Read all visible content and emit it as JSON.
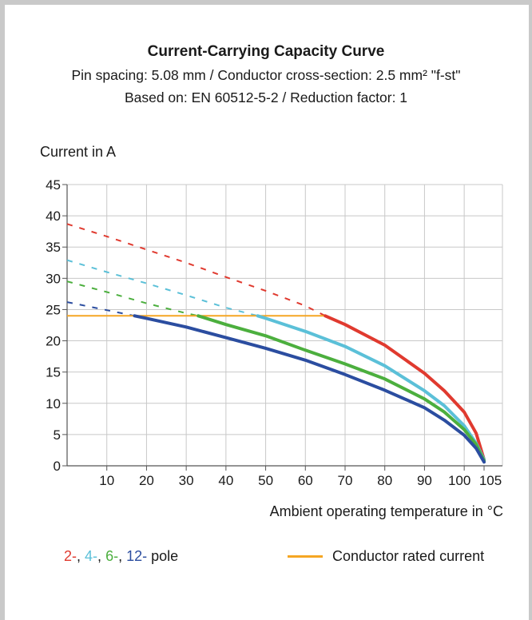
{
  "chart_data": {
    "type": "line",
    "title": "Current-Carrying Capacity Curve",
    "subtitle_lines": [
      "Pin spacing: 5.08 mm / Conductor cross-section: 2.5 mm² \"f-st\"",
      "Based on: EN 60512-5-2 / Reduction factor: 1"
    ],
    "ylabel": "Current in A",
    "xlabel": "Ambient operating temperature in °C",
    "xlim": [
      0,
      105
    ],
    "ylim": [
      0,
      45
    ],
    "x_ticks": [
      10,
      20,
      30,
      40,
      50,
      60,
      70,
      80,
      90,
      100,
      105
    ],
    "y_ticks": [
      0,
      5,
      10,
      15,
      20,
      25,
      30,
      35,
      40,
      45
    ],
    "grid": true,
    "rated_current": {
      "value": 24,
      "x_range": [
        0,
        65
      ],
      "color": "#f5a623"
    },
    "series": [
      {
        "name": "2-",
        "color": "#e03a2f",
        "dashed": [
          [
            0,
            38.7
          ],
          [
            10,
            36.7
          ],
          [
            20,
            34.6
          ],
          [
            30,
            32.5
          ],
          [
            40,
            30.2
          ],
          [
            50,
            28.0
          ],
          [
            60,
            25.6
          ],
          [
            65,
            24.0
          ]
        ],
        "solid": [
          [
            65,
            24.0
          ],
          [
            70,
            22.6
          ],
          [
            80,
            19.3
          ],
          [
            90,
            14.8
          ],
          [
            95,
            12.0
          ],
          [
            100,
            8.6
          ],
          [
            103,
            5.2
          ],
          [
            105,
            1.0
          ]
        ]
      },
      {
        "name": "4-",
        "color": "#5bc0d8",
        "dashed": [
          [
            0,
            32.9
          ],
          [
            10,
            31.0
          ],
          [
            20,
            29.2
          ],
          [
            30,
            27.3
          ],
          [
            40,
            25.3
          ],
          [
            48,
            24.0
          ]
        ],
        "solid": [
          [
            48,
            24.0
          ],
          [
            50,
            23.6
          ],
          [
            60,
            21.5
          ],
          [
            70,
            19.1
          ],
          [
            80,
            16.0
          ],
          [
            90,
            12.0
          ],
          [
            95,
            9.6
          ],
          [
            100,
            6.4
          ],
          [
            103,
            3.6
          ],
          [
            105,
            1.0
          ]
        ]
      },
      {
        "name": "6-",
        "color": "#4caf3e",
        "dashed": [
          [
            0,
            29.5
          ],
          [
            10,
            27.8
          ],
          [
            20,
            26.0
          ],
          [
            30,
            24.4
          ],
          [
            33,
            24.0
          ]
        ],
        "solid": [
          [
            33,
            24.0
          ],
          [
            40,
            22.6
          ],
          [
            50,
            20.8
          ],
          [
            60,
            18.5
          ],
          [
            70,
            16.3
          ],
          [
            80,
            13.9
          ],
          [
            90,
            10.7
          ],
          [
            95,
            8.6
          ],
          [
            100,
            5.8
          ],
          [
            103,
            3.4
          ],
          [
            105,
            0.8
          ]
        ]
      },
      {
        "name": "12-",
        "color": "#2b4da0",
        "dashed": [
          [
            0,
            26.2
          ],
          [
            10,
            24.9
          ],
          [
            17,
            24.0
          ]
        ],
        "solid": [
          [
            17,
            24.0
          ],
          [
            20,
            23.6
          ],
          [
            30,
            22.2
          ],
          [
            40,
            20.5
          ],
          [
            50,
            18.8
          ],
          [
            60,
            16.9
          ],
          [
            70,
            14.6
          ],
          [
            80,
            12.1
          ],
          [
            90,
            9.3
          ],
          [
            95,
            7.3
          ],
          [
            100,
            4.9
          ],
          [
            103,
            2.8
          ],
          [
            105,
            0.6
          ]
        ]
      }
    ],
    "legend": {
      "pole_parts": [
        {
          "text": "2-",
          "color": "#e03a2f"
        },
        {
          "text": ", ",
          "color": "#1a1a1a"
        },
        {
          "text": "4-",
          "color": "#5bc0d8"
        },
        {
          "text": ", ",
          "color": "#1a1a1a"
        },
        {
          "text": "6-",
          "color": "#4caf3e"
        },
        {
          "text": ", ",
          "color": "#1a1a1a"
        },
        {
          "text": "12-",
          "color": "#2b4da0"
        },
        {
          "text": " pole",
          "color": "#1a1a1a"
        }
      ],
      "rated_label": "Conductor rated current"
    }
  }
}
